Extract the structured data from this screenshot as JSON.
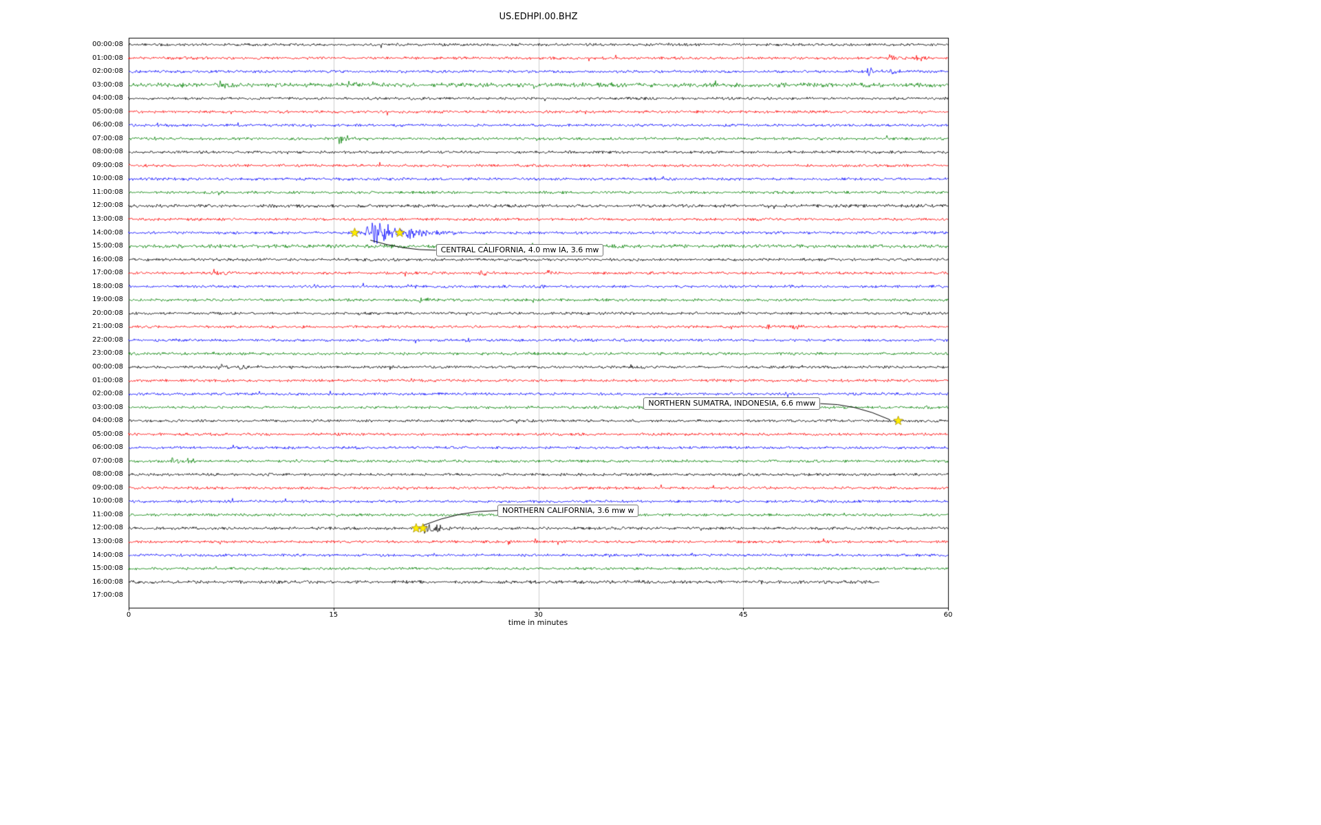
{
  "title": "US.EDHPI.00.BHZ",
  "chart_data": {
    "type": "line",
    "subtype": "helicorder-dayplot",
    "title": "US.EDHPI.00.BHZ",
    "xlabel": "time in minutes",
    "ylabel": "",
    "xlim": [
      0,
      60
    ],
    "xticks": [
      0,
      15,
      30,
      45,
      60
    ],
    "grid_minutes": [
      15,
      30,
      45
    ],
    "trace_colors": {
      "k": "#000000",
      "r": "#ff0000",
      "b": "#0000ff",
      "g": "#008000"
    },
    "marker_color": "#ffee00",
    "rows": [
      {
        "label": "00:00:08",
        "c": "k",
        "ev": [
          [
            19.5,
            3,
            0.3
          ]
        ]
      },
      {
        "label": "01:00:08",
        "c": "r",
        "ev": [
          [
            55.6,
            7,
            0.5
          ],
          [
            57.6,
            7,
            0.5
          ]
        ]
      },
      {
        "label": "02:00:08",
        "c": "b",
        "ev": [
          [
            54.0,
            9,
            0.6
          ],
          [
            55.7,
            7,
            0.5
          ]
        ]
      },
      {
        "label": "03:00:08",
        "c": "g",
        "n": 1.7,
        "ev": [
          [
            3.8,
            5,
            0.5
          ],
          [
            6.6,
            6,
            0.6
          ],
          [
            10.0,
            4,
            0.4
          ],
          [
            16.3,
            7,
            0.5
          ],
          [
            17.8,
            4,
            0.3
          ],
          [
            29.6,
            5,
            0.5
          ],
          [
            32.8,
            4,
            0.4
          ],
          [
            35.3,
            4,
            0.4
          ],
          [
            40.2,
            4,
            0.4
          ],
          [
            48.0,
            3,
            0.3
          ]
        ]
      },
      {
        "label": "04:00:08",
        "c": "k",
        "ev": [
          [
            30.4,
            3,
            0.4
          ]
        ]
      },
      {
        "label": "05:00:08",
        "c": "r",
        "ev": [
          [
            33.4,
            4,
            0.3
          ]
        ]
      },
      {
        "label": "06:00:08",
        "c": "b",
        "ev": []
      },
      {
        "label": "07:00:08",
        "c": "g",
        "ev": [
          [
            14.4,
            4,
            0.4
          ],
          [
            15.2,
            9,
            0.8
          ]
        ]
      },
      {
        "label": "08:00:08",
        "c": "k",
        "ev": []
      },
      {
        "label": "09:00:08",
        "c": "r",
        "ev": []
      },
      {
        "label": "10:00:08",
        "c": "b",
        "ev": []
      },
      {
        "label": "11:00:08",
        "c": "g",
        "ev": []
      },
      {
        "label": "12:00:08",
        "c": "k",
        "n": 1.3,
        "ev": []
      },
      {
        "label": "13:00:08",
        "c": "r",
        "ev": []
      },
      {
        "label": "14:00:08",
        "c": "b",
        "ev": [
          [
            17.3,
            26,
            2.2
          ],
          [
            20.2,
            10,
            1.0
          ]
        ]
      },
      {
        "label": "15:00:08",
        "c": "g",
        "n": 1.4,
        "ev": [
          [
            57.5,
            3,
            0.3
          ]
        ]
      },
      {
        "label": "16:00:08",
        "c": "k",
        "ev": []
      },
      {
        "label": "17:00:08",
        "c": "r",
        "ev": [
          [
            6.0,
            7,
            0.8
          ],
          [
            25.6,
            7,
            0.6
          ],
          [
            30.5,
            5,
            0.5
          ]
        ]
      },
      {
        "label": "18:00:08",
        "c": "b",
        "ev": [
          [
            13.5,
            4,
            0.4
          ],
          [
            20.3,
            5,
            0.4
          ],
          [
            29.9,
            4,
            0.4
          ],
          [
            48.2,
            3,
            0.3
          ]
        ]
      },
      {
        "label": "19:00:08",
        "c": "g",
        "ev": [
          [
            10.2,
            3,
            0.3
          ],
          [
            16.8,
            3,
            0.3
          ],
          [
            21.2,
            6,
            0.6
          ],
          [
            28.9,
            3,
            0.3
          ],
          [
            34.9,
            3,
            0.3
          ]
        ]
      },
      {
        "label": "20:00:08",
        "c": "k",
        "ev": [
          [
            16.5,
            4,
            0.3
          ],
          [
            36.7,
            4,
            0.4
          ]
        ]
      },
      {
        "label": "21:00:08",
        "c": "r",
        "ev": [
          [
            46.6,
            4,
            0.4
          ],
          [
            48.6,
            7,
            0.7
          ]
        ]
      },
      {
        "label": "22:00:08",
        "c": "b",
        "ev": [
          [
            18.5,
            3,
            0.4
          ],
          [
            24.6,
            4,
            0.4
          ],
          [
            33.6,
            3,
            0.3
          ],
          [
            44.2,
            3,
            0.3
          ]
        ]
      },
      {
        "label": "23:00:08",
        "c": "g",
        "ev": [
          [
            29.1,
            4,
            0.3
          ],
          [
            31.4,
            3,
            0.3
          ]
        ]
      },
      {
        "label": "00:00:08",
        "c": "k",
        "ev": [
          [
            6.5,
            4,
            0.8
          ],
          [
            8.0,
            5,
            0.8
          ],
          [
            11.7,
            3,
            0.5
          ],
          [
            36.7,
            6,
            0.4
          ]
        ]
      },
      {
        "label": "01:00:08",
        "c": "r",
        "ev": []
      },
      {
        "label": "02:00:08",
        "c": "b",
        "ev": [
          [
            48.0,
            3,
            0.3
          ]
        ]
      },
      {
        "label": "03:00:08",
        "c": "g",
        "ev": [
          [
            15.3,
            3,
            0.3
          ]
        ]
      },
      {
        "label": "04:00:08",
        "c": "k",
        "ev": [
          [
            45.9,
            3,
            0.3
          ],
          [
            51.2,
            4,
            0.3
          ]
        ]
      },
      {
        "label": "05:00:08",
        "c": "r",
        "ev": []
      },
      {
        "label": "06:00:08",
        "c": "b",
        "ev": []
      },
      {
        "label": "07:00:08",
        "c": "g",
        "ev": [
          [
            3.0,
            6,
            0.8
          ],
          [
            4.2,
            6,
            0.6
          ],
          [
            12.0,
            3,
            0.3
          ]
        ]
      },
      {
        "label": "08:00:08",
        "c": "k",
        "ev": []
      },
      {
        "label": "09:00:08",
        "c": "r",
        "ev": []
      },
      {
        "label": "10:00:08",
        "c": "b",
        "ev": []
      },
      {
        "label": "11:00:08",
        "c": "g",
        "ev": []
      },
      {
        "label": "12:00:08",
        "c": "k",
        "ev": [
          [
            21.5,
            9,
            1.2
          ],
          [
            22.5,
            5,
            0.8
          ]
        ]
      },
      {
        "label": "13:00:08",
        "c": "r",
        "ev": [
          [
            27.7,
            8,
            0.15
          ]
        ]
      },
      {
        "label": "14:00:08",
        "c": "b",
        "ev": [
          [
            35.1,
            3,
            0.4
          ]
        ]
      },
      {
        "label": "15:00:08",
        "c": "g",
        "ev": []
      },
      {
        "label": "16:00:08",
        "c": "k",
        "n": 1.3,
        "end": 55,
        "ev": []
      },
      {
        "label": "17:00:08",
        "c": "r",
        "end": 0,
        "ev": []
      }
    ],
    "markers": [
      [
        14,
        16.55
      ],
      [
        14,
        19.85
      ],
      [
        28,
        56.35
      ],
      [
        36,
        21.05
      ],
      [
        36,
        21.55
      ]
    ],
    "annotations": [
      {
        "text": "CENTRAL CALIFORNIA, 4.0 mw IA, 3.6 mw",
        "box_t": 22.5,
        "box_row": 15.3,
        "target_t": 17.7,
        "target_row": 14.55,
        "anchor": "left"
      },
      {
        "text": "NORTHERN SUMATRA, INDONESIA, 6.6 mww",
        "box_t": 37.7,
        "box_row": 26.72,
        "target_t": 55.7,
        "target_row": 27.9,
        "anchor": "right"
      },
      {
        "text": "NORTHERN CALIFORNIA, 3.6 mw w",
        "box_t": 27.0,
        "box_row": 34.68,
        "target_t": 21.5,
        "target_row": 35.8,
        "anchor": "left"
      }
    ]
  }
}
